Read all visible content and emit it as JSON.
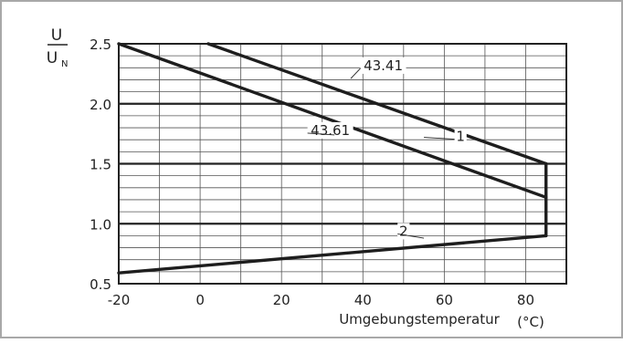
{
  "chart_data": {
    "type": "line",
    "ylabel_num": "U",
    "ylabel_den": "U",
    "ylabel_den_sub": "N",
    "xlabel": "Umgebungstemperatur",
    "xunit": "(°C)",
    "xlim": [
      -20,
      90
    ],
    "ylim": [
      0.5,
      2.5
    ],
    "x_ticks": [
      -20,
      0,
      20,
      40,
      60,
      80
    ],
    "y_ticks": [
      0.5,
      1.0,
      1.5,
      2.0,
      2.5
    ],
    "y_tick_labels": [
      "0.5",
      "1.0",
      "1.5",
      "2.0",
      "2.5"
    ],
    "series": [
      {
        "points": [
          [
            2,
            2.5
          ],
          [
            85,
            1.5
          ]
        ]
      },
      {
        "points": [
          [
            -20,
            2.5
          ],
          [
            85,
            1.22
          ]
        ]
      },
      {
        "points": [
          [
            -20,
            0.59
          ],
          [
            85,
            0.9
          ]
        ]
      },
      {
        "points": [
          [
            85,
            1.5
          ],
          [
            85,
            0.9
          ]
        ]
      }
    ],
    "annotations": [
      {
        "text": "43.41",
        "x": 45,
        "y": 2.28,
        "lx": 37,
        "ly": 2.21
      },
      {
        "text": "43.61",
        "x": 32,
        "y": 1.74,
        "lx": 33,
        "ly": 1.74
      },
      {
        "text": "1",
        "x": 64,
        "y": 1.69,
        "lx": 55,
        "ly": 1.72
      },
      {
        "text": "2",
        "x": 50,
        "y": 0.9,
        "lx": 55,
        "ly": 0.88
      }
    ],
    "grid": true
  }
}
